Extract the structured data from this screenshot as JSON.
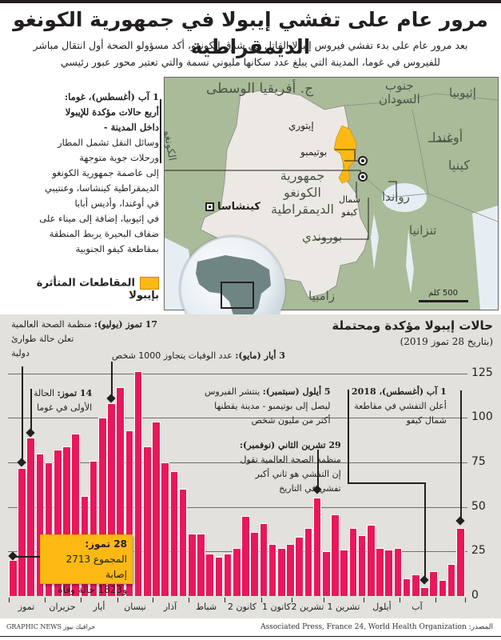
{
  "header": {
    "title": "مرور عام على تفشي إيبولا في جمهورية الكونغو الديمقراطية",
    "subtitle_line1": "بعد مرور عام على بدء تفشي فيروس إيبولا القاتل في شرق الكونغو، أكد مسؤولو الصحة أول انتقال مباشر",
    "subtitle_line2": "للفيروس في غوما، المدينة التي يبلغ عدد سكانها مليوني نسمة والتي تعتبر محور عبور رئيسي"
  },
  "left_annotation": {
    "heading_line1": "1 آب (أغسطس)، غوما:",
    "heading_line2": "أربع حالات مؤكدة للإيبولا",
    "heading_line3": "داخل المدينة -",
    "body": [
      "وسائل النقل تشمل المطار",
      "ورحلات جوية متوجهة",
      "إلى عاصمة جمهورية الكونغو",
      "الديمقراطية كينشاسا، وعنتيبي",
      "في أوغندا، وأديس أبابا",
      "في إثيوبيا، إضافة إلى ميناء على",
      "ضفاف البحيرة يربط المنطقة",
      "بمقاطعة  كيفو الجنوبية"
    ]
  },
  "legend": {
    "label": "المقاطعات المتأثرة بإيبولا",
    "color": "#fdb913"
  },
  "map": {
    "countries": {
      "car": "ج. أفريقيا الوسطى",
      "south_sudan_1": "جنوب",
      "south_sudan_2": "السودان",
      "ethiopia": "إثيوبيا",
      "congo": "الكونغو",
      "uganda": "أوغندا",
      "kenya": "كينيا",
      "drc_1": "جمهورية",
      "drc_2": "الكونغو",
      "drc_3": "الديمقراطية",
      "rwanda": "رواندا",
      "tanzania": "تنزانيا",
      "burundi": "بوروندي",
      "zambia": "زامبيا"
    },
    "places": {
      "ituri": "إيتوري",
      "butembo": "بوتيمبو",
      "north_kivu_1": "شمال",
      "north_kivu_2": "كيفو",
      "kinshasa": "كينشاسا"
    },
    "scale": "500 كلم",
    "colors": {
      "land": "#a9bb98",
      "drc": "#ece9e4",
      "water": "#e6eef4",
      "affected": "#fdb913"
    }
  },
  "chart": {
    "title": "حالات إيبولا مؤكدة ومحتملة",
    "subtitle": "(بتاريخ 28 تموز 2019)",
    "bar_color": "#e8185a",
    "annotations": {
      "jul17_bold": "17 تموز (يوليو):",
      "jul17_rest": " منظمة الصحة العالمية",
      "jul17_l2": "تعلن حالة طوارئ",
      "jul17_l3": "دولية",
      "may3_bold": "3 أيار (مايو):",
      "may3_rest": " عدد الوفيات يتجاوز 1000 شخص",
      "jul14_bold": "14 تموز:",
      "jul14_rest": " الحالة",
      "jul14_l2": "الأولى في غوما",
      "sep5_bold": "5 أيلول (سبتمبر):",
      "sep5_rest": " ينتشر الفيروس",
      "sep5_l2": "ليصل إلى بوتيمبو - مدينة يقطنها",
      "sep5_l3": "أكثر من مليون شخص",
      "aug1_bold": "1 آب (أغسطس)، 2018",
      "aug1_l2": "أعلن التفشي في مقاطعة",
      "aug1_l3": "شمال كيفو",
      "nov29_bold": "29 تشرين الثاني (نوفمبر):",
      "nov29_l2": "منظمة الصحة العالمية تقول",
      "nov29_l3": "إن التفشي هو ثاني أكبر",
      "nov29_l4": "تفشي في التاريخ"
    },
    "callout": {
      "line1": "28 تموز:",
      "line2": "المجموع 2713 إصابة",
      "line3": "و1823 حالة وفاة"
    },
    "yticks": [
      "125",
      "100",
      "75",
      "50",
      "25",
      "0"
    ],
    "months": [
      "تموز",
      "حزيران",
      "أيار",
      "نيسان",
      "آذار",
      "شباط",
      "كانون 2",
      "كانون 1",
      "تشرين 2",
      "تشرين 1",
      "أيلول",
      "آب"
    ]
  },
  "chart_data": {
    "type": "bar",
    "title": "حالات إيبولا مؤكدة ومحتملة",
    "subtitle": "(بتاريخ 28 تموز 2019)",
    "xlabel": "",
    "ylabel": "",
    "ylim": [
      0,
      125
    ],
    "yticks": [
      0,
      25,
      50,
      75,
      100,
      125
    ],
    "grid": true,
    "x_direction": "right-to-left (Aug 2018 on right, Jul 2019 on left)",
    "categories_months_left_to_right": [
      "تموز",
      "حزيران",
      "أيار",
      "نيسان",
      "آذار",
      "شباط",
      "كانون 2",
      "كانون 1",
      "تشرين 2",
      "تشرين 1",
      "أيلول",
      "آب"
    ],
    "series": [
      {
        "name": "weekly confirmed and probable cases (left to right)",
        "values": [
          20,
          72,
          89,
          80,
          75,
          82,
          84,
          91,
          56,
          76,
          100,
          108,
          117,
          93,
          126,
          84,
          98,
          75,
          70,
          60,
          35,
          35,
          24,
          22,
          24,
          27,
          45,
          36,
          41,
          29,
          27,
          29,
          33,
          38,
          55,
          25,
          46,
          26,
          38,
          34,
          40,
          27,
          26,
          27,
          10,
          12,
          5,
          14,
          9,
          18,
          38
        ]
      }
    ],
    "annotations": [
      "1 آب (أغسطس)، 2018: أعلن التفشي في مقاطعة شمال كيفو",
      "5 أيلول (سبتمبر): ينتشر الفيروس ليصل إلى بوتيمبو",
      "29 تشرين الثاني (نوفمبر): ثاني أكبر تفشي في التاريخ",
      "3 أيار (مايو): عدد الوفيات يتجاوز 1000 شخص",
      "14 تموز: الحالة الأولى في غوما",
      "17 تموز (يوليو): منظمة الصحة العالمية تعلن حالة طوارئ دولية",
      "28 تموز: المجموع 2713 إصابة و1823 حالة وفاة"
    ]
  },
  "footer": {
    "source": "المصدر: Associated Press, France 24, World Health Organization",
    "credit": "GRAPHIC NEWS جرافيك نيوز"
  }
}
